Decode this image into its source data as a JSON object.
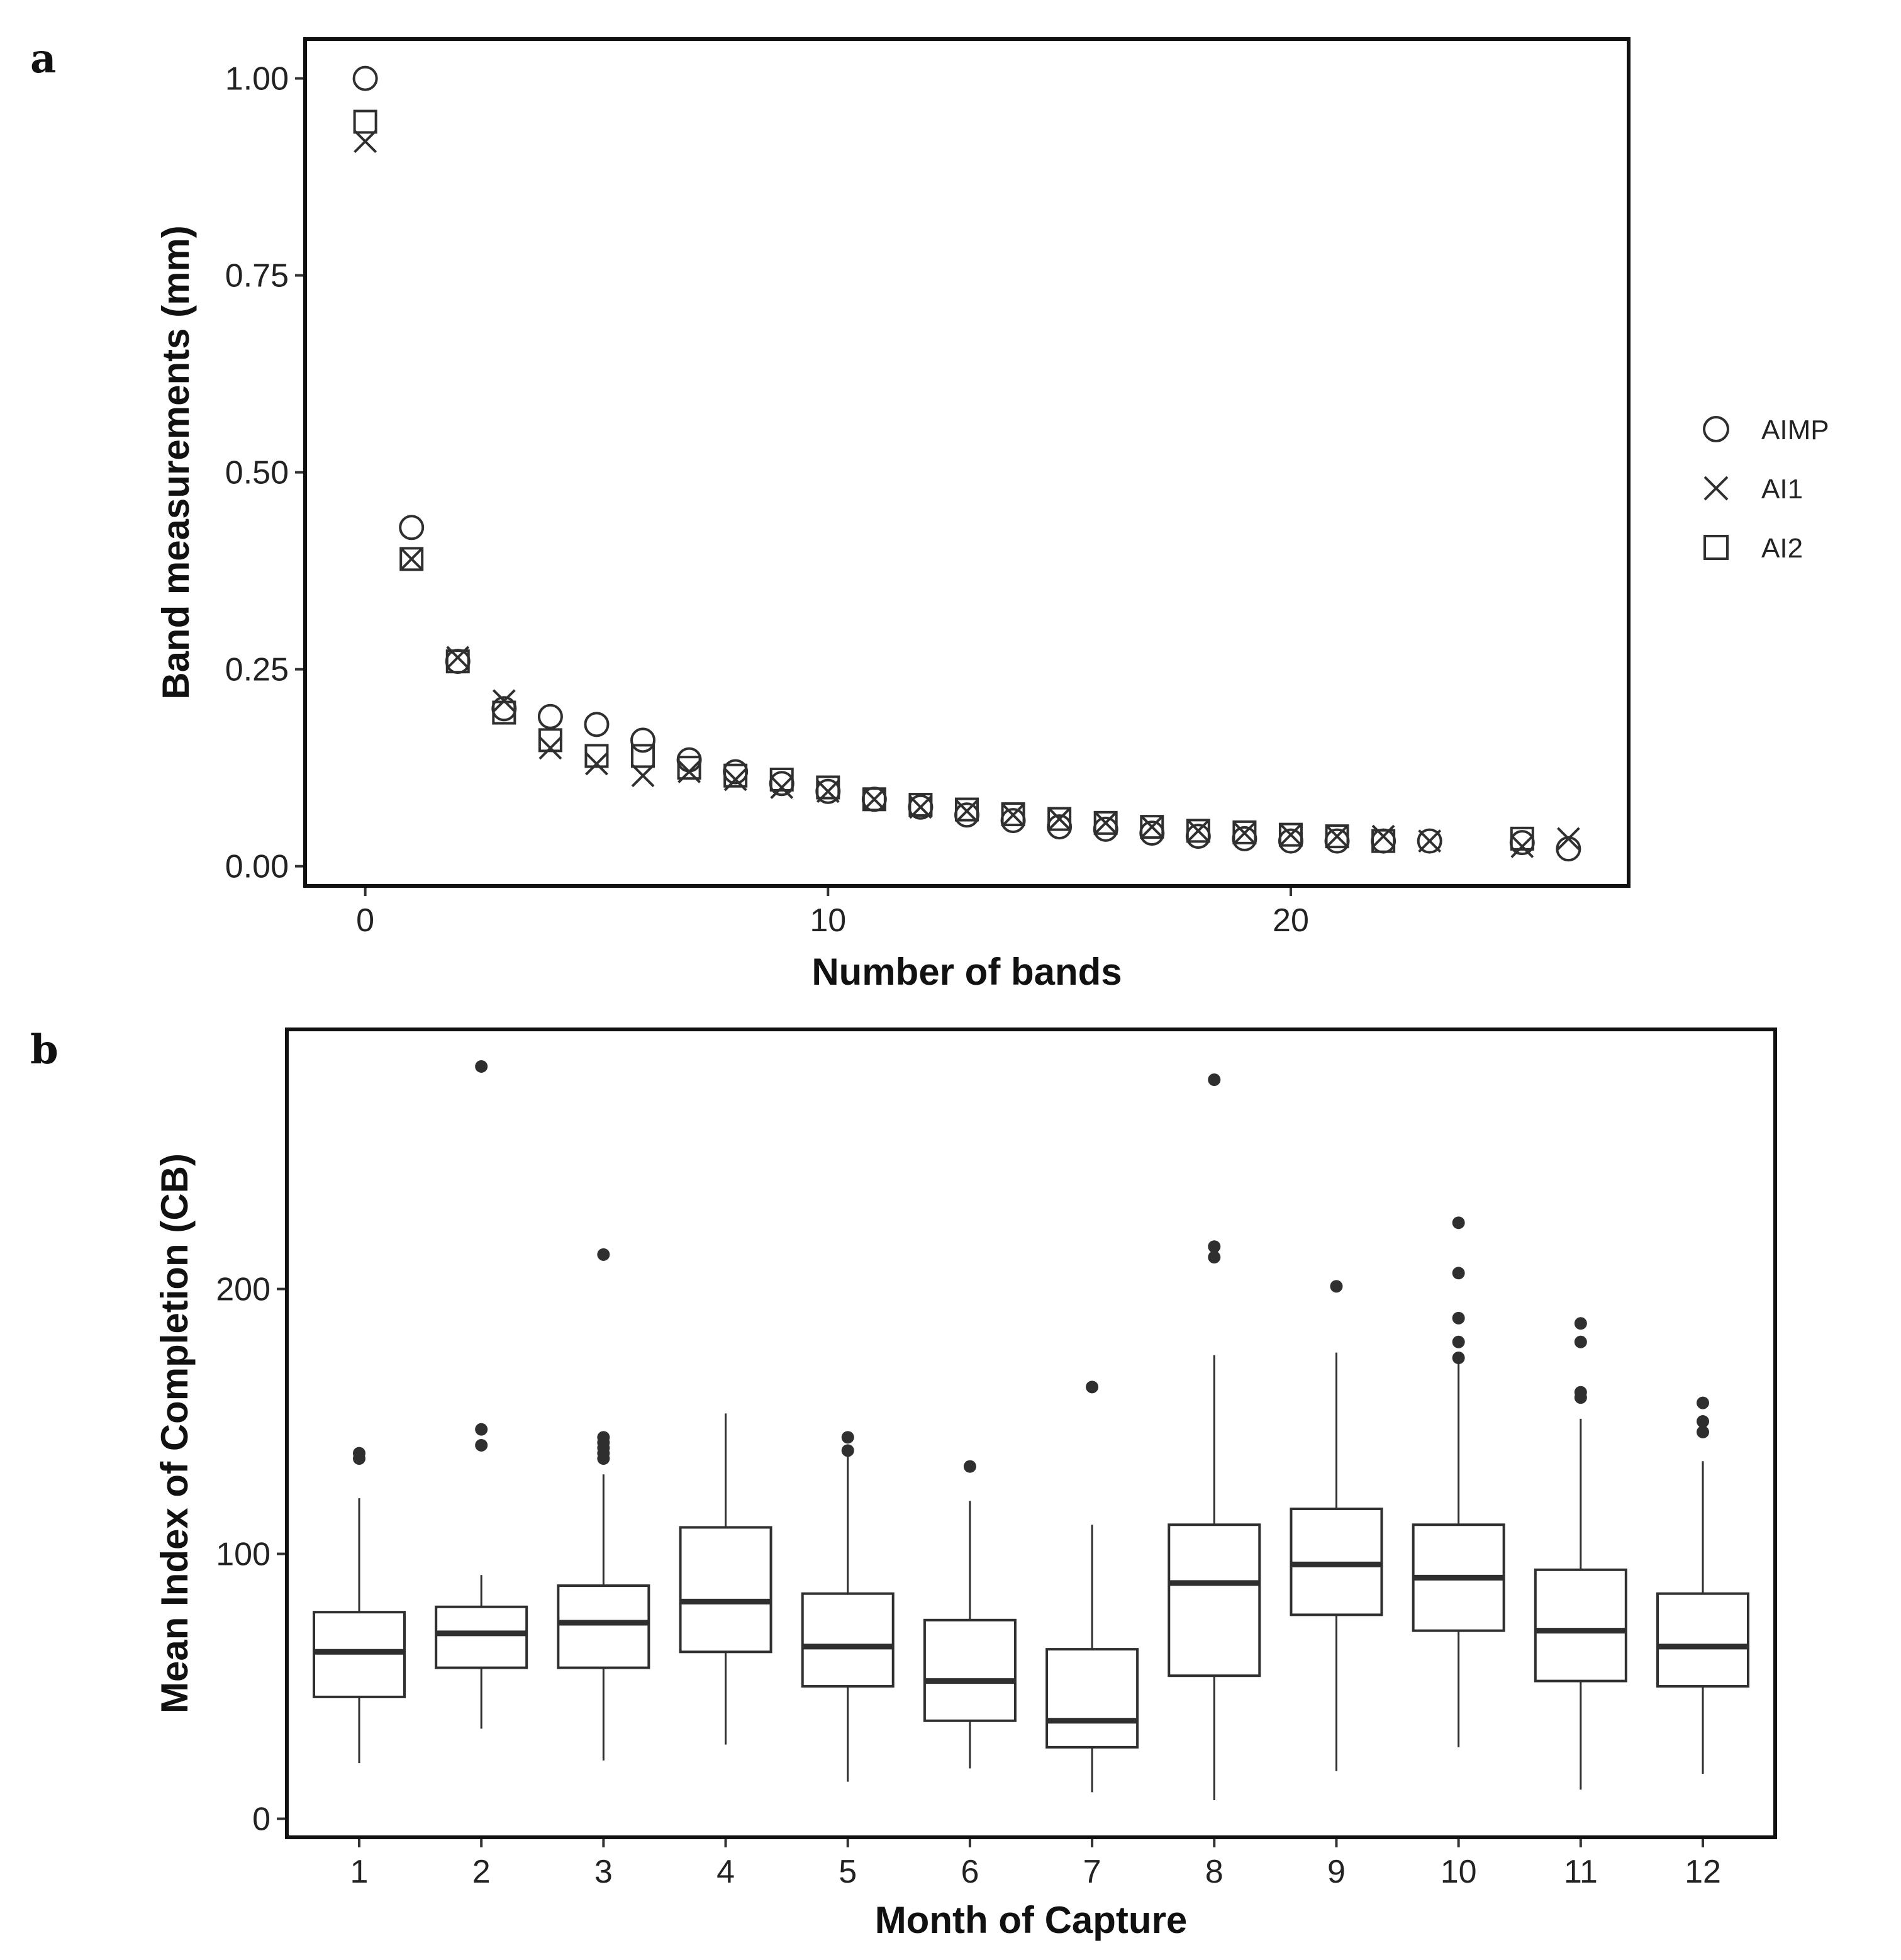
{
  "chart_data": [
    {
      "panel": "a",
      "type": "scatter",
      "title": "",
      "xlabel": "Number of bands",
      "ylabel": "Band measurements (mm)",
      "xlim": [
        -1.3,
        27.3
      ],
      "ylim": [
        -0.025,
        1.05
      ],
      "xticks": [
        0,
        10,
        20
      ],
      "yticks": [
        0.0,
        0.25,
        0.5,
        0.75,
        1.0
      ],
      "ytick_labels": [
        "0.00",
        "0.25",
        "0.50",
        "0.75",
        "1.00"
      ],
      "legend": {
        "position": "right",
        "entries": [
          "AIMP",
          "AI1",
          "AI2"
        ]
      },
      "series": [
        {
          "name": "AIMP",
          "marker": "circle",
          "x": [
            0,
            1,
            2,
            3,
            4,
            5,
            6,
            7,
            8,
            9,
            10,
            11,
            12,
            13,
            14,
            15,
            16,
            17,
            18,
            19,
            20,
            21,
            22,
            23,
            25,
            26
          ],
          "y": [
            1.0,
            0.43,
            0.26,
            0.2,
            0.19,
            0.18,
            0.16,
            0.135,
            0.12,
            0.105,
            0.095,
            0.085,
            0.075,
            0.065,
            0.058,
            0.05,
            0.047,
            0.042,
            0.038,
            0.035,
            0.032,
            0.032,
            0.032,
            0.032,
            0.03,
            0.022
          ]
        },
        {
          "name": "AI1",
          "marker": "x",
          "x": [
            0,
            1,
            2,
            3,
            4,
            5,
            6,
            7,
            8,
            9,
            10,
            11,
            12,
            13,
            14,
            15,
            16,
            17,
            18,
            19,
            20,
            21,
            22,
            23,
            25,
            26
          ],
          "y": [
            0.92,
            0.39,
            0.265,
            0.21,
            0.15,
            0.13,
            0.115,
            0.12,
            0.11,
            0.1,
            0.095,
            0.085,
            0.075,
            0.07,
            0.065,
            0.06,
            0.055,
            0.05,
            0.045,
            0.042,
            0.04,
            0.038,
            0.038,
            0.032,
            0.025,
            0.035
          ]
        },
        {
          "name": "AI2",
          "marker": "square",
          "x": [
            0,
            1,
            2,
            3,
            4,
            5,
            6,
            7,
            8,
            9,
            10,
            11,
            12,
            13,
            14,
            15,
            16,
            17,
            18,
            19,
            20,
            21,
            22,
            25
          ],
          "y": [
            0.945,
            0.39,
            0.26,
            0.195,
            0.16,
            0.14,
            0.14,
            0.125,
            0.115,
            0.11,
            0.1,
            0.085,
            0.078,
            0.072,
            0.066,
            0.06,
            0.055,
            0.05,
            0.045,
            0.043,
            0.04,
            0.038,
            0.032,
            0.035
          ]
        }
      ]
    },
    {
      "panel": "b",
      "type": "box",
      "title": "",
      "xlabel": "Month of Capture",
      "ylabel": "Mean Index of Completion (CB)",
      "ylim": [
        -7,
        298
      ],
      "yticks": [
        0,
        100,
        200
      ],
      "categories": [
        "1",
        "2",
        "3",
        "4",
        "5",
        "6",
        "7",
        "8",
        "9",
        "10",
        "11",
        "12"
      ],
      "boxes": [
        {
          "category": "1",
          "whisker_low": 21,
          "q1": 46,
          "median": 63,
          "q3": 78,
          "whisker_high": 121,
          "outliers": [
            136,
            138
          ]
        },
        {
          "category": "2",
          "whisker_low": 34,
          "q1": 57,
          "median": 70,
          "q3": 80,
          "whisker_high": 92,
          "outliers": [
            141,
            147,
            284
          ]
        },
        {
          "category": "3",
          "whisker_low": 22,
          "q1": 57,
          "median": 74,
          "q3": 88,
          "whisker_high": 130,
          "outliers": [
            136,
            138,
            140,
            142,
            144,
            213
          ]
        },
        {
          "category": "4",
          "whisker_low": 28,
          "q1": 63,
          "median": 82,
          "q3": 110,
          "whisker_high": 153,
          "outliers": []
        },
        {
          "category": "5",
          "whisker_low": 14,
          "q1": 50,
          "median": 65,
          "q3": 85,
          "whisker_high": 138,
          "outliers": [
            139,
            144
          ]
        },
        {
          "category": "6",
          "whisker_low": 19,
          "q1": 37,
          "median": 52,
          "q3": 75,
          "whisker_high": 120,
          "outliers": [
            133
          ]
        },
        {
          "category": "7",
          "whisker_low": 10,
          "q1": 27,
          "median": 37,
          "q3": 64,
          "whisker_high": 111,
          "outliers": [
            163
          ]
        },
        {
          "category": "8",
          "whisker_low": 7,
          "q1": 54,
          "median": 89,
          "q3": 111,
          "whisker_high": 175,
          "outliers": [
            212,
            216,
            279
          ]
        },
        {
          "category": "9",
          "whisker_low": 18,
          "q1": 77,
          "median": 96,
          "q3": 117,
          "whisker_high": 176,
          "outliers": [
            201
          ]
        },
        {
          "category": "10",
          "whisker_low": 27,
          "q1": 71,
          "median": 91,
          "q3": 111,
          "whisker_high": 172,
          "outliers": [
            174,
            180,
            189,
            206,
            225
          ]
        },
        {
          "category": "11",
          "whisker_low": 11,
          "q1": 52,
          "median": 71,
          "q3": 94,
          "whisker_high": 151,
          "outliers": [
            159,
            161,
            180,
            187
          ]
        },
        {
          "category": "12",
          "whisker_low": 17,
          "q1": 50,
          "median": 65,
          "q3": 85,
          "whisker_high": 135,
          "outliers": [
            146,
            150,
            157
          ]
        }
      ]
    }
  ]
}
